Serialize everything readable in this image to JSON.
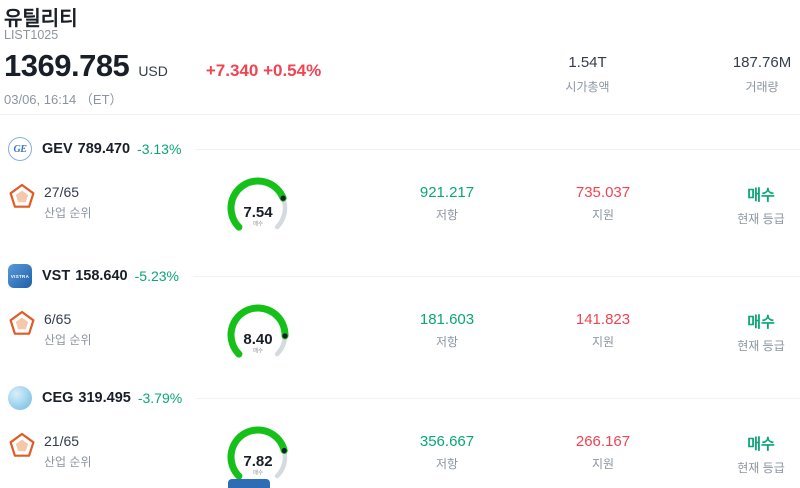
{
  "header": {
    "title": "유틸리티",
    "subtitle": "LIST1025",
    "price": "1369.785",
    "currency": "USD",
    "change": "+7.340 +0.54%",
    "datetime": "03/06, 16:14 （ET）",
    "market_cap": {
      "value": "1.54T",
      "label": "시가총액"
    },
    "volume": {
      "value": "187.76M",
      "label": "거래량"
    }
  },
  "colors": {
    "up_red": "#f04452",
    "down_teal": "#0aa678",
    "gauge_green": "#15c119",
    "gauge_gray": "#d5dae0"
  },
  "stocks": [
    {
      "ticker": "GEV",
      "price": "789.470",
      "percent": "-3.13%",
      "rank": "27/65",
      "rank_label": "산업 순위",
      "gauge": {
        "value": 7.54,
        "max": 10,
        "display": "7.54",
        "label": "매수"
      },
      "resistance": "921.217",
      "resistance_label": "저항",
      "support": "735.037",
      "support_label": "지원",
      "rating": "매수",
      "rating_label": "현재 등급",
      "logo_text": "GE"
    },
    {
      "ticker": "VST",
      "price": "158.640",
      "percent": "-5.23%",
      "rank": "6/65",
      "rank_label": "산업 순위",
      "gauge": {
        "value": 8.4,
        "max": 10,
        "display": "8.40",
        "label": "매수"
      },
      "resistance": "181.603",
      "resistance_label": "저항",
      "support": "141.823",
      "support_label": "지원",
      "rating": "매수",
      "rating_label": "현재 등급",
      "logo_text": "VISTRA"
    },
    {
      "ticker": "CEG",
      "price": "319.495",
      "percent": "-3.79%",
      "rank": "21/65",
      "rank_label": "산업 순위",
      "gauge": {
        "value": 7.82,
        "max": 10,
        "display": "7.82",
        "label": "매수"
      },
      "resistance": "356.667",
      "resistance_label": "저항",
      "support": "266.167",
      "support_label": "지원",
      "rating": "매수",
      "rating_label": "현재 등급",
      "logo_text": ""
    }
  ]
}
